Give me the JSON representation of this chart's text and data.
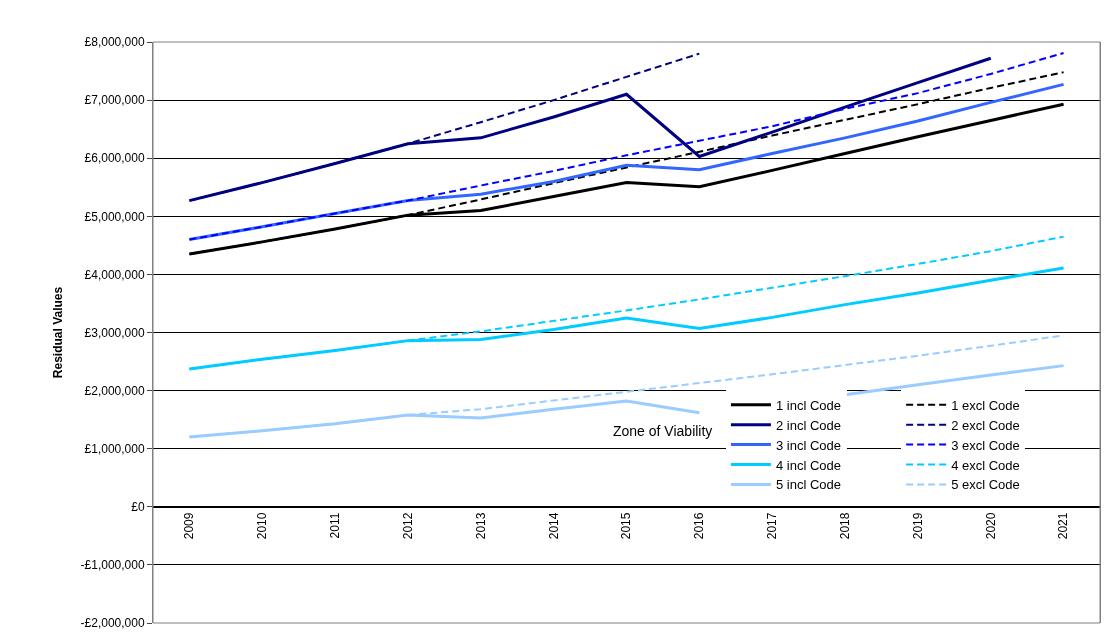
{
  "chart_data": {
    "type": "line",
    "ylabel": "Residual Values",
    "categories": [
      "2009",
      "2010",
      "2011",
      "2012",
      "2013",
      "2014",
      "2015",
      "2016",
      "2017",
      "2018",
      "2019",
      "2020",
      "2021"
    ],
    "series": [
      {
        "name": "1 incl Code",
        "color": "#000000",
        "line_style": "solid",
        "values": [
          4350000,
          4560000,
          4780000,
          5020000,
          5100000,
          5340000,
          5580000,
          5510000,
          5790000,
          6080000,
          6370000,
          6650000,
          6930000
        ]
      },
      {
        "name": "1 excl Code",
        "color": "#000000",
        "line_style": "dashed",
        "values": [
          4350000,
          4560000,
          4780000,
          5020000,
          5290000,
          5570000,
          5840000,
          6110000,
          6390000,
          6660000,
          6930000,
          7210000,
          7480000
        ]
      },
      {
        "name": "2 incl Code",
        "color": "#000080",
        "line_style": "solid",
        "values": [
          5270000,
          5580000,
          5910000,
          6250000,
          6350000,
          6710000,
          7100000,
          6030000,
          6450000,
          6880000,
          7300000,
          7720000,
          null
        ]
      },
      {
        "name": "2 excl Code",
        "color": "#000080",
        "line_style": "dashed",
        "values": [
          5270000,
          5580000,
          5910000,
          6250000,
          6620000,
          7000000,
          7400000,
          7800000,
          null,
          null,
          null,
          null,
          null
        ]
      },
      {
        "name": "3 incl Code",
        "color": "#3366ff",
        "line_style": "solid",
        "values": [
          4600000,
          4820000,
          5050000,
          5270000,
          5380000,
          5600000,
          5880000,
          5800000,
          6080000,
          6350000,
          6640000,
          6960000,
          7270000
        ]
      },
      {
        "name": "3 excl Code",
        "color": "#0000ff",
        "line_style": "dashed",
        "values": [
          4600000,
          4820000,
          5050000,
          5270000,
          5530000,
          5780000,
          6050000,
          6300000,
          6550000,
          6850000,
          7120000,
          7450000,
          7810000
        ]
      },
      {
        "name": "4 incl Code",
        "color": "#00ccff",
        "line_style": "solid",
        "values": [
          2370000,
          2540000,
          2690000,
          2860000,
          2880000,
          3050000,
          3250000,
          3070000,
          3260000,
          3480000,
          3680000,
          3900000,
          4110000
        ]
      },
      {
        "name": "4 excl Code",
        "color": "#00ccff",
        "line_style": "dashed",
        "values": [
          2370000,
          2540000,
          2690000,
          2860000,
          3020000,
          3200000,
          3380000,
          3570000,
          3770000,
          3970000,
          4180000,
          4400000,
          4650000
        ]
      },
      {
        "name": "5 incl Code",
        "color": "#99ccff",
        "line_style": "solid",
        "values": [
          1200000,
          1310000,
          1430000,
          1580000,
          1530000,
          1680000,
          1820000,
          1620000,
          null,
          1930000,
          2100000,
          2270000,
          2430000
        ]
      },
      {
        "name": "5 excl Code",
        "color": "#99ccff",
        "line_style": "dashed",
        "values": [
          1200000,
          1310000,
          1430000,
          1580000,
          1680000,
          1830000,
          1980000,
          2130000,
          2280000,
          2440000,
          2600000,
          2770000,
          2950000
        ]
      }
    ],
    "ylim": [
      -2000000,
      8000000
    ],
    "yticks": [
      {
        "value": -2000000,
        "label": "-£2,000,000"
      },
      {
        "value": -1000000,
        "label": "-£1,000,000"
      },
      {
        "value": 0,
        "label": "£0"
      },
      {
        "value": 1000000,
        "label": "£1,000,000"
      },
      {
        "value": 2000000,
        "label": "£2,000,000"
      },
      {
        "value": 3000000,
        "label": "£3,000,000"
      },
      {
        "value": 4000000,
        "label": "£4,000,000"
      },
      {
        "value": 5000000,
        "label": "£5,000,000"
      },
      {
        "value": 6000000,
        "label": "£6,000,000"
      },
      {
        "value": 7000000,
        "label": "£7,000,000"
      },
      {
        "value": 8000000,
        "label": "£8,000,000"
      }
    ],
    "grid": "y",
    "legend": "bottom right",
    "annotations": [
      "Zone of Viability"
    ]
  }
}
